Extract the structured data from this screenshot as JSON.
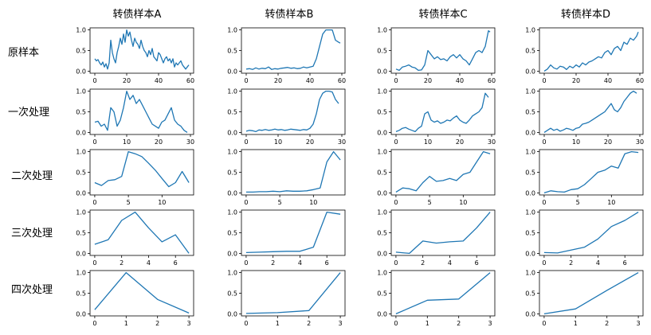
{
  "column_titles": [
    "转债样本A",
    "转债样本B",
    "转债样本C",
    "转债样本D"
  ],
  "row_labels": [
    "原样本",
    "一次处理",
    "二次处理",
    "三次处理",
    "四次处理"
  ],
  "chart_data": [
    {
      "type": "line",
      "row": 0,
      "col": 0,
      "xticks": [
        0,
        20,
        40,
        60
      ],
      "yticks": [
        "0.0",
        "0.5",
        "1.0"
      ],
      "xlim": [
        -3,
        62
      ],
      "ylim": [
        -0.05,
        1.05
      ],
      "x": [
        0,
        1,
        2,
        3,
        4,
        5,
        6,
        7,
        8,
        9,
        10,
        11,
        12,
        13,
        14,
        15,
        16,
        17,
        18,
        19,
        20,
        21,
        22,
        23,
        24,
        25,
        26,
        27,
        28,
        29,
        30,
        31,
        32,
        33,
        34,
        35,
        36,
        37,
        38,
        39,
        40,
        41,
        42,
        43,
        44,
        45,
        46,
        47,
        48,
        49,
        50,
        51,
        52,
        53,
        54,
        55,
        56,
        57,
        58,
        59
      ],
      "y": [
        0.3,
        0.25,
        0.28,
        0.2,
        0.15,
        0.22,
        0.1,
        0.18,
        0.05,
        0.2,
        0.75,
        0.45,
        0.3,
        0.2,
        0.45,
        0.6,
        0.8,
        0.65,
        0.9,
        0.7,
        1.0,
        0.85,
        0.95,
        0.75,
        0.6,
        0.8,
        0.7,
        0.65,
        0.55,
        0.75,
        0.6,
        0.5,
        0.45,
        0.35,
        0.5,
        0.4,
        0.55,
        0.35,
        0.3,
        0.25,
        0.45,
        0.4,
        0.3,
        0.2,
        0.3,
        0.35,
        0.25,
        0.3,
        0.2,
        0.3,
        0.1,
        0.2,
        0.15,
        0.2,
        0.25,
        0.15,
        0.1,
        0.05,
        0.1,
        0.15
      ]
    },
    {
      "type": "line",
      "row": 0,
      "col": 1,
      "xticks": [
        0,
        20,
        40,
        60
      ],
      "yticks": [
        "0.0",
        "0.5",
        "1.0"
      ],
      "xlim": [
        -3,
        62
      ],
      "ylim": [
        -0.05,
        1.05
      ],
      "x": [
        0,
        2,
        4,
        6,
        8,
        10,
        12,
        14,
        16,
        18,
        20,
        22,
        24,
        26,
        28,
        30,
        32,
        34,
        36,
        38,
        40,
        42,
        44,
        46,
        48,
        50,
        52,
        54,
        56,
        58,
        59
      ],
      "y": [
        0.05,
        0.06,
        0.04,
        0.08,
        0.05,
        0.07,
        0.06,
        0.1,
        0.04,
        0.06,
        0.05,
        0.07,
        0.08,
        0.09,
        0.07,
        0.08,
        0.06,
        0.07,
        0.1,
        0.08,
        0.1,
        0.12,
        0.3,
        0.6,
        0.9,
        1.0,
        1.0,
        1.0,
        0.75,
        0.7,
        0.68
      ]
    },
    {
      "type": "line",
      "row": 0,
      "col": 2,
      "xticks": [
        0,
        20,
        40,
        60
      ],
      "yticks": [
        "0.0",
        "0.5",
        "1.0"
      ],
      "xlim": [
        -3,
        62
      ],
      "ylim": [
        -0.05,
        1.05
      ],
      "x": [
        0,
        2,
        4,
        6,
        8,
        10,
        12,
        14,
        16,
        18,
        20,
        22,
        24,
        26,
        28,
        30,
        32,
        34,
        36,
        38,
        40,
        42,
        44,
        46,
        48,
        50,
        52,
        54,
        56,
        58,
        59
      ],
      "y": [
        0.05,
        0.02,
        0.1,
        0.12,
        0.15,
        0.1,
        0.08,
        0.02,
        0.03,
        0.15,
        0.5,
        0.4,
        0.3,
        0.35,
        0.28,
        0.3,
        0.25,
        0.35,
        0.4,
        0.32,
        0.4,
        0.3,
        0.25,
        0.15,
        0.3,
        0.45,
        0.5,
        0.45,
        0.6,
        0.98,
        0.95
      ]
    },
    {
      "type": "line",
      "row": 0,
      "col": 3,
      "xticks": [
        0,
        20,
        40,
        60
      ],
      "yticks": [
        "0.0",
        "0.5",
        "1.0"
      ],
      "xlim": [
        -3,
        62
      ],
      "ylim": [
        -0.05,
        1.05
      ],
      "x": [
        0,
        2,
        4,
        6,
        8,
        10,
        12,
        14,
        16,
        18,
        20,
        22,
        24,
        26,
        28,
        30,
        32,
        34,
        36,
        38,
        40,
        42,
        44,
        46,
        48,
        50,
        52,
        54,
        56,
        58,
        59
      ],
      "y": [
        0.0,
        0.05,
        0.15,
        0.08,
        0.05,
        0.12,
        0.1,
        0.04,
        0.12,
        0.08,
        0.15,
        0.1,
        0.2,
        0.15,
        0.22,
        0.25,
        0.3,
        0.35,
        0.32,
        0.45,
        0.5,
        0.4,
        0.55,
        0.6,
        0.5,
        0.7,
        0.65,
        0.8,
        0.75,
        0.85,
        0.95
      ]
    },
    {
      "type": "line",
      "row": 1,
      "col": 0,
      "xticks": [
        0,
        10,
        20,
        30
      ],
      "yticks": [
        "0.0",
        "0.5",
        "1.0"
      ],
      "xlim": [
        -1.5,
        31
      ],
      "ylim": [
        -0.05,
        1.05
      ],
      "x": [
        0,
        1,
        2,
        3,
        4,
        5,
        6,
        7,
        8,
        9,
        10,
        11,
        12,
        13,
        14,
        15,
        16,
        17,
        18,
        19,
        20,
        21,
        22,
        23,
        24,
        25,
        26,
        27,
        28,
        29
      ],
      "y": [
        0.25,
        0.27,
        0.15,
        0.2,
        0.05,
        0.6,
        0.5,
        0.15,
        0.3,
        0.6,
        1.0,
        0.8,
        0.9,
        0.7,
        0.8,
        0.65,
        0.5,
        0.35,
        0.2,
        0.15,
        0.1,
        0.25,
        0.3,
        0.45,
        0.6,
        0.3,
        0.2,
        0.15,
        0.05,
        0.0
      ]
    },
    {
      "type": "line",
      "row": 1,
      "col": 1,
      "xticks": [
        0,
        10,
        20,
        30
      ],
      "yticks": [
        "0.0",
        "0.5",
        "1.0"
      ],
      "xlim": [
        -1.5,
        31
      ],
      "ylim": [
        -0.05,
        1.05
      ],
      "x": [
        0,
        1,
        2,
        3,
        4,
        5,
        6,
        7,
        8,
        9,
        10,
        11,
        12,
        13,
        14,
        15,
        16,
        17,
        18,
        19,
        20,
        21,
        22,
        23,
        24,
        25,
        26,
        27,
        28,
        29
      ],
      "y": [
        0.03,
        0.05,
        0.04,
        0.02,
        0.06,
        0.05,
        0.07,
        0.05,
        0.06,
        0.08,
        0.06,
        0.07,
        0.05,
        0.06,
        0.08,
        0.07,
        0.06,
        0.05,
        0.07,
        0.06,
        0.1,
        0.2,
        0.45,
        0.8,
        0.95,
        1.0,
        1.0,
        0.98,
        0.8,
        0.7
      ]
    },
    {
      "type": "line",
      "row": 1,
      "col": 2,
      "xticks": [
        0,
        10,
        20,
        30
      ],
      "yticks": [
        "0.0",
        "0.5",
        "1.0"
      ],
      "xlim": [
        -1.5,
        31
      ],
      "ylim": [
        -0.05,
        1.05
      ],
      "x": [
        0,
        1,
        2,
        3,
        4,
        5,
        6,
        7,
        8,
        9,
        10,
        11,
        12,
        13,
        14,
        15,
        16,
        17,
        18,
        19,
        20,
        21,
        22,
        23,
        24,
        25,
        26,
        27,
        28,
        29
      ],
      "y": [
        0.02,
        0.05,
        0.1,
        0.12,
        0.08,
        0.05,
        0.02,
        0.1,
        0.15,
        0.45,
        0.5,
        0.3,
        0.25,
        0.28,
        0.22,
        0.25,
        0.3,
        0.28,
        0.35,
        0.4,
        0.3,
        0.25,
        0.22,
        0.3,
        0.4,
        0.45,
        0.5,
        0.6,
        0.95,
        0.85
      ]
    },
    {
      "type": "line",
      "row": 1,
      "col": 3,
      "xticks": [
        0,
        10,
        20,
        30
      ],
      "yticks": [
        "0.0",
        "0.5",
        "1.0"
      ],
      "xlim": [
        -1.5,
        31
      ],
      "ylim": [
        -0.05,
        1.05
      ],
      "x": [
        0,
        1,
        2,
        3,
        4,
        5,
        6,
        7,
        8,
        9,
        10,
        11,
        12,
        13,
        14,
        15,
        16,
        17,
        18,
        19,
        20,
        21,
        22,
        23,
        24,
        25,
        26,
        27,
        28,
        29
      ],
      "y": [
        0.0,
        0.05,
        0.1,
        0.05,
        0.08,
        0.03,
        0.06,
        0.1,
        0.08,
        0.05,
        0.1,
        0.12,
        0.2,
        0.22,
        0.25,
        0.3,
        0.35,
        0.4,
        0.45,
        0.5,
        0.6,
        0.7,
        0.55,
        0.5,
        0.6,
        0.75,
        0.85,
        0.95,
        1.0,
        0.95
      ]
    },
    {
      "type": "line",
      "row": 2,
      "col": 0,
      "xticks": [
        0,
        5,
        10
      ],
      "yticks": [
        "0.0",
        "0.5",
        "1.0"
      ],
      "xlim": [
        -0.7,
        14.7
      ],
      "ylim": [
        -0.05,
        1.05
      ],
      "x": [
        0,
        1,
        2,
        3,
        4,
        5,
        6,
        7,
        8,
        9,
        10,
        11,
        12,
        13,
        14
      ],
      "y": [
        0.25,
        0.18,
        0.3,
        0.32,
        0.4,
        1.0,
        0.95,
        0.88,
        0.72,
        0.55,
        0.35,
        0.15,
        0.25,
        0.52,
        0.25
      ]
    },
    {
      "type": "line",
      "row": 2,
      "col": 1,
      "xticks": [
        0,
        5,
        10
      ],
      "yticks": [
        "0.0",
        "0.5",
        "1.0"
      ],
      "xlim": [
        -0.7,
        14.7
      ],
      "ylim": [
        -0.05,
        1.05
      ],
      "x": [
        0,
        1,
        2,
        3,
        4,
        5,
        6,
        7,
        8,
        9,
        10,
        11,
        12,
        13,
        14
      ],
      "y": [
        0.02,
        0.02,
        0.03,
        0.03,
        0.04,
        0.03,
        0.05,
        0.04,
        0.04,
        0.05,
        0.08,
        0.12,
        0.75,
        1.0,
        0.8
      ]
    },
    {
      "type": "line",
      "row": 2,
      "col": 2,
      "xticks": [
        0,
        5,
        10
      ],
      "yticks": [
        "0.0",
        "0.5",
        "1.0"
      ],
      "xlim": [
        -0.7,
        14.7
      ],
      "ylim": [
        -0.05,
        1.05
      ],
      "x": [
        0,
        1,
        2,
        3,
        4,
        5,
        6,
        7,
        8,
        9,
        10,
        11,
        12,
        13,
        14
      ],
      "y": [
        0.02,
        0.12,
        0.1,
        0.05,
        0.25,
        0.4,
        0.28,
        0.3,
        0.35,
        0.3,
        0.45,
        0.5,
        0.75,
        1.0,
        0.95
      ]
    },
    {
      "type": "line",
      "row": 2,
      "col": 3,
      "xticks": [
        0,
        5,
        10
      ],
      "yticks": [
        "0.0",
        "0.5",
        "1.0"
      ],
      "xlim": [
        -0.7,
        14.7
      ],
      "ylim": [
        -0.05,
        1.05
      ],
      "x": [
        0,
        1,
        2,
        3,
        4,
        5,
        6,
        7,
        8,
        9,
        10,
        11,
        12,
        13,
        14
      ],
      "y": [
        0.0,
        0.05,
        0.03,
        0.02,
        0.08,
        0.1,
        0.2,
        0.35,
        0.5,
        0.55,
        0.65,
        0.6,
        0.95,
        1.0,
        0.98
      ]
    },
    {
      "type": "line",
      "row": 3,
      "col": 0,
      "xticks": [
        0,
        2,
        4,
        6
      ],
      "yticks": [
        "0.0",
        "0.5",
        "1.0"
      ],
      "xlim": [
        -0.35,
        7.35
      ],
      "ylim": [
        -0.05,
        1.05
      ],
      "x": [
        0,
        1,
        2,
        3,
        4,
        5,
        6,
        7
      ],
      "y": [
        0.22,
        0.33,
        0.8,
        1.0,
        0.62,
        0.28,
        0.45,
        0.0
      ]
    },
    {
      "type": "line",
      "row": 3,
      "col": 1,
      "xticks": [
        0,
        2,
        4,
        6
      ],
      "yticks": [
        "0.0",
        "0.5",
        "1.0"
      ],
      "xlim": [
        -0.35,
        7.35
      ],
      "ylim": [
        -0.05,
        1.05
      ],
      "x": [
        0,
        1,
        2,
        3,
        4,
        5,
        6,
        7
      ],
      "y": [
        0.02,
        0.03,
        0.04,
        0.05,
        0.05,
        0.15,
        1.0,
        0.95
      ]
    },
    {
      "type": "line",
      "row": 3,
      "col": 2,
      "xticks": [
        0,
        2,
        4,
        6
      ],
      "yticks": [
        "0.0",
        "0.5",
        "1.0"
      ],
      "xlim": [
        -0.35,
        7.35
      ],
      "ylim": [
        -0.05,
        1.05
      ],
      "x": [
        0,
        1,
        2,
        3,
        4,
        5,
        6,
        7
      ],
      "y": [
        0.03,
        0.0,
        0.3,
        0.25,
        0.28,
        0.3,
        0.62,
        1.0
      ]
    },
    {
      "type": "line",
      "row": 3,
      "col": 3,
      "xticks": [
        0,
        2,
        4,
        6
      ],
      "yticks": [
        "0.0",
        "0.5",
        "1.0"
      ],
      "xlim": [
        -0.35,
        7.35
      ],
      "ylim": [
        -0.05,
        1.05
      ],
      "x": [
        0,
        1,
        2,
        3,
        4,
        5,
        6,
        7
      ],
      "y": [
        0.02,
        0.01,
        0.08,
        0.15,
        0.35,
        0.65,
        0.8,
        1.0
      ]
    },
    {
      "type": "line",
      "row": 4,
      "col": 0,
      "xticks": [
        0,
        1,
        2,
        3
      ],
      "yticks": [
        "0.0",
        "0.5",
        "1.0"
      ],
      "xlim": [
        -0.15,
        3.15
      ],
      "ylim": [
        -0.05,
        1.05
      ],
      "x": [
        0,
        1,
        2,
        3
      ],
      "y": [
        0.1,
        1.0,
        0.35,
        0.02
      ]
    },
    {
      "type": "line",
      "row": 4,
      "col": 1,
      "xticks": [
        0,
        1,
        2,
        3
      ],
      "yticks": [
        "0.0",
        "0.5",
        "1.0"
      ],
      "xlim": [
        -0.15,
        3.15
      ],
      "ylim": [
        -0.05,
        1.05
      ],
      "x": [
        0,
        1,
        2,
        3
      ],
      "y": [
        0.01,
        0.03,
        0.08,
        1.0
      ]
    },
    {
      "type": "line",
      "row": 4,
      "col": 2,
      "xticks": [
        0,
        1,
        2,
        3
      ],
      "yticks": [
        "0.0",
        "0.5",
        "1.0"
      ],
      "xlim": [
        -0.15,
        3.15
      ],
      "ylim": [
        -0.05,
        1.05
      ],
      "x": [
        0,
        1,
        2,
        3
      ],
      "y": [
        0.0,
        0.33,
        0.36,
        1.0
      ]
    },
    {
      "type": "line",
      "row": 4,
      "col": 3,
      "xticks": [
        0,
        1,
        2,
        3
      ],
      "yticks": [
        "0.0",
        "0.5",
        "1.0"
      ],
      "xlim": [
        -0.15,
        3.15
      ],
      "ylim": [
        -0.05,
        1.05
      ],
      "x": [
        0,
        1,
        2,
        3
      ],
      "y": [
        0.0,
        0.12,
        0.57,
        1.0
      ]
    }
  ]
}
